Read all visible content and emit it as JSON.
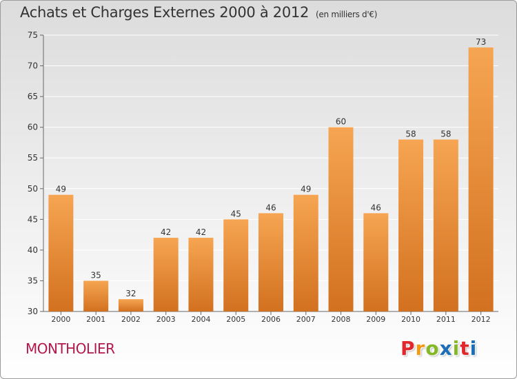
{
  "header": {
    "title": "Achats et Charges Externes 2000 à 2012",
    "unit": "(en milliers d'€)"
  },
  "footer": {
    "commune": "MONTHOLIER",
    "logo_text": "Proxiti",
    "logo_colors": [
      "#e2272c",
      "#f29a17",
      "#84b826",
      "#1c6fb7",
      "#84b826",
      "#e2272c",
      "#1c6fb7"
    ]
  },
  "colors": {
    "bar_top": "#f6a552",
    "bar_bottom": "#d2711f",
    "grid": "#ffffff",
    "axis": "#666666",
    "text": "#333333"
  },
  "chart_data": {
    "type": "bar",
    "categories": [
      "2000",
      "2001",
      "2002",
      "2003",
      "2004",
      "2005",
      "2006",
      "2007",
      "2008",
      "2009",
      "2010",
      "2011",
      "2012"
    ],
    "values": [
      49,
      35,
      32,
      42,
      42,
      45,
      46,
      49,
      60,
      46,
      58,
      58,
      73
    ],
    "title": "Achats et Charges Externes 2000 à 2012",
    "ylim": [
      30,
      75
    ],
    "yticks": [
      30,
      35,
      40,
      45,
      50,
      55,
      60,
      65,
      70,
      75
    ],
    "grid": true
  }
}
